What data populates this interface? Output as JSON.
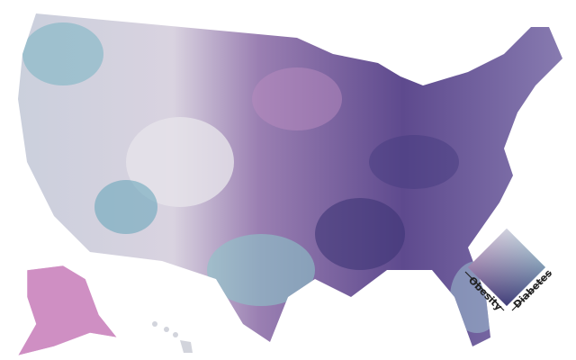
{
  "legend": {
    "obesity_label": "Obesity",
    "diabetes_label": "Diabetes"
  }
}
